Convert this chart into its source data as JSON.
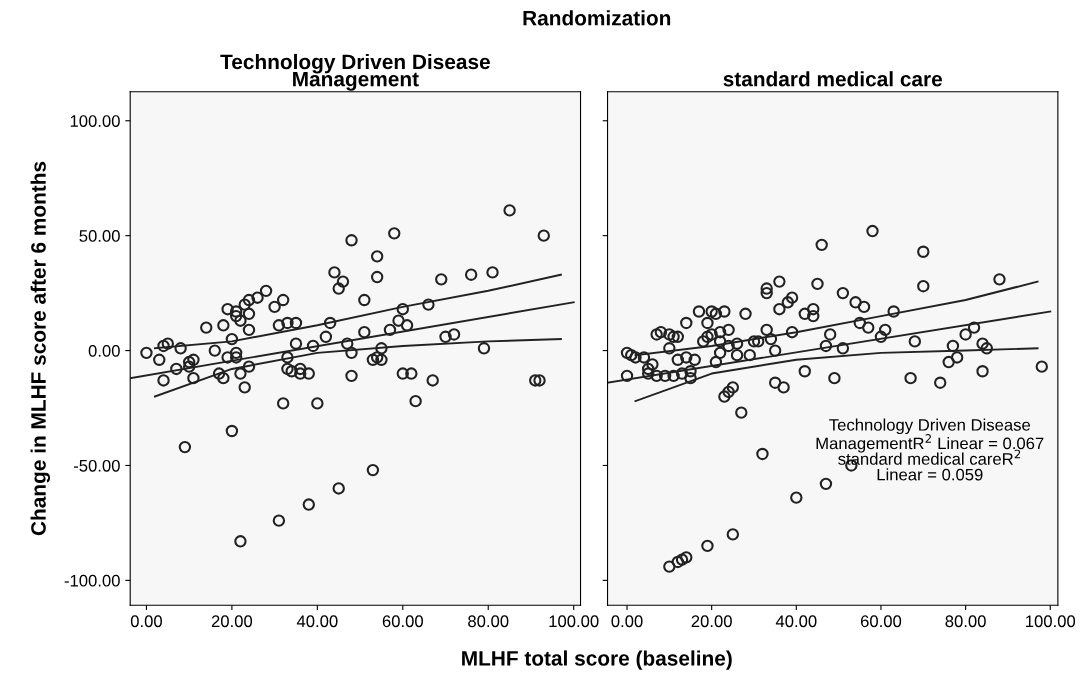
{
  "chart_data": [
    {
      "type": "scatter",
      "title": "Technology Driven Disease\nManagement",
      "xlabel": "MLHF total score (baseline)",
      "ylabel": "Change in MLHF score after 6 months",
      "annotations": [
        "Randomization"
      ],
      "xlim": [
        -3.8,
        101.6
      ],
      "ylim": [
        -110.8,
        112.6
      ],
      "xticks": [
        {
          "value": 0,
          "label": "0.00"
        },
        {
          "value": 20,
          "label": "20.00"
        },
        {
          "value": 40,
          "label": "40.00"
        },
        {
          "value": 60,
          "label": "60.00"
        },
        {
          "value": 80,
          "label": "80.00"
        },
        {
          "value": 100,
          "label": "100.00"
        }
      ],
      "yticks": [
        {
          "value": -100,
          "label": "-100.00"
        },
        {
          "value": -50,
          "label": "-50.00"
        },
        {
          "value": 0,
          "label": "0.00"
        },
        {
          "value": 50,
          "label": "50.00"
        },
        {
          "value": 100,
          "label": "100.00"
        }
      ],
      "grid": false,
      "legend": false,
      "marker": "circle",
      "series": [
        {
          "color": "#222222",
          "x": [
            0,
            3,
            4,
            4,
            5,
            7,
            8,
            9,
            10,
            10,
            11,
            11,
            14,
            16,
            17,
            18,
            18,
            19,
            19,
            20,
            20,
            21,
            21,
            21,
            21,
            22,
            22,
            22,
            23,
            23,
            24,
            24,
            24,
            24,
            26,
            28,
            30,
            31,
            31,
            32,
            32,
            33,
            33,
            33,
            34,
            35,
            35,
            36,
            36,
            38,
            38,
            39,
            40,
            42,
            43,
            44,
            45,
            45,
            46,
            47,
            48,
            48,
            48,
            51,
            51,
            53,
            53,
            54,
            54,
            54,
            55,
            55,
            57,
            58,
            59,
            60,
            60,
            61,
            62,
            63,
            66,
            67,
            69,
            70,
            72,
            76,
            79,
            81,
            85,
            91,
            92,
            93
          ],
          "values": [
            -1,
            -4,
            2,
            -13,
            3,
            -8,
            1,
            -42,
            -5,
            -7,
            -12,
            -4,
            10,
            0,
            -10,
            11,
            -12,
            18,
            -3,
            -35,
            5,
            -3,
            15,
            17,
            -1,
            13,
            -10,
            -83,
            20,
            -16,
            22,
            9,
            16,
            -7,
            23,
            26,
            19,
            11,
            -74,
            22,
            -23,
            12,
            -3,
            -8,
            -9,
            3,
            12,
            -10,
            -8,
            -10,
            -67,
            2,
            -23,
            6,
            12,
            34,
            27,
            -60,
            30,
            3,
            48,
            -11,
            -1,
            22,
            8,
            -52,
            -4,
            32,
            -3,
            41,
            -4,
            1,
            9,
            51,
            13,
            18,
            -10,
            11,
            -10,
            -22,
            20,
            -13,
            31,
            6,
            7,
            33,
            1,
            34,
            61,
            -13,
            -13,
            50
          ]
        },
        {
          "type": "line",
          "marker": "none",
          "color": "#222222",
          "x": [
            -3.8,
            100
          ],
          "values": [
            -12,
            21
          ]
        },
        {
          "type": "line",
          "marker": "none",
          "color": "#222222",
          "x": [
            2,
            20,
            40,
            60,
            80,
            97
          ],
          "values": [
            1,
            4,
            11,
            19,
            26,
            33
          ]
        },
        {
          "type": "line",
          "marker": "none",
          "color": "#222222",
          "x": [
            2,
            20,
            40,
            60,
            80,
            97
          ],
          "values": [
            -20,
            -8,
            -1,
            2,
            4,
            5
          ]
        }
      ]
    },
    {
      "type": "scatter",
      "title": "standard medical care",
      "tick_labels": "x",
      "annotations": [
        "Technology Driven Disease\nManagementR$^{2}$ Linear = 0.067\nstandard medical careR$^{2}$\nLinear = 0.059"
      ],
      "xlim": [
        -4.6,
        101.8
      ],
      "ylim": [
        -110.8,
        112.6
      ],
      "xticks": [
        {
          "value": 0,
          "label": "0.00"
        },
        {
          "value": 20,
          "label": "20.00"
        },
        {
          "value": 40,
          "label": "40.00"
        },
        {
          "value": 60,
          "label": "60.00"
        },
        {
          "value": 80,
          "label": "80.00"
        },
        {
          "value": 100,
          "label": "100.00"
        }
      ],
      "yticks": [
        {
          "value": -100,
          "label": null
        },
        {
          "value": -50,
          "label": null
        },
        {
          "value": 0,
          "label": null
        },
        {
          "value": 50,
          "label": null
        },
        {
          "value": 100,
          "label": null
        }
      ],
      "grid": false,
      "legend": false,
      "marker": "circle",
      "series": [
        {
          "color": "#222222",
          "x": [
            0,
            0,
            1,
            2,
            4,
            5,
            5,
            6,
            7,
            7,
            8,
            9,
            10,
            10,
            11,
            11,
            12,
            12,
            13,
            14,
            14,
            15,
            15,
            16,
            17,
            18,
            19,
            19,
            20,
            20,
            21,
            21,
            22,
            22,
            22,
            23,
            23,
            24,
            24,
            24,
            25,
            26,
            26,
            27,
            28,
            29,
            30,
            31,
            32,
            33,
            33,
            33,
            34,
            35,
            35,
            36,
            36,
            37,
            38,
            39,
            39,
            40,
            42,
            42,
            44,
            44,
            45,
            46,
            47,
            47,
            48,
            49,
            51,
            51,
            53,
            54,
            55,
            56,
            57,
            58,
            60,
            61,
            63,
            67,
            68,
            70,
            70,
            74,
            76,
            77,
            78,
            80,
            82,
            84,
            84,
            85,
            88,
            98,
            10,
            12,
            13,
            14,
            19,
            25
          ],
          "values": [
            -1,
            -11,
            -2,
            -3,
            -3,
            -8,
            -10,
            -6,
            -11,
            7,
            8,
            -11,
            1,
            7,
            6,
            -11,
            -4,
            6,
            -10,
            -3,
            12,
            -9,
            -12,
            -4,
            17,
            4,
            12,
            6,
            7,
            17,
            16,
            -5,
            4,
            8,
            -1,
            -20,
            17,
            -18,
            9,
            2,
            -16,
            -2,
            3,
            -27,
            16,
            -2,
            4,
            4,
            -45,
            27,
            25,
            9,
            5,
            -14,
            0,
            18,
            30,
            -16,
            21,
            23,
            8,
            -64,
            16,
            -9,
            15,
            18,
            29,
            46,
            2,
            -58,
            7,
            -12,
            1,
            25,
            -50,
            21,
            12,
            19,
            10,
            52,
            6,
            9,
            17,
            -12,
            4,
            28,
            43,
            -14,
            -5,
            2,
            -3,
            7,
            10,
            -9,
            3,
            1,
            31,
            -7,
            -94,
            -92,
            -91,
            -90,
            -85,
            -80
          ]
        },
        {
          "type": "line",
          "marker": "none",
          "color": "#222222",
          "x": [
            -4.6,
            100
          ],
          "values": [
            -14,
            17
          ]
        },
        {
          "type": "line",
          "marker": "none",
          "color": "#222222",
          "x": [
            2,
            20,
            40,
            60,
            80,
            97
          ],
          "values": [
            -2,
            2,
            8,
            15,
            22,
            30
          ]
        },
        {
          "type": "line",
          "marker": "none",
          "color": "#222222",
          "x": [
            2,
            20,
            40,
            60,
            80,
            97
          ],
          "values": [
            -22,
            -10,
            -4,
            -1,
            0,
            1
          ]
        }
      ]
    }
  ]
}
